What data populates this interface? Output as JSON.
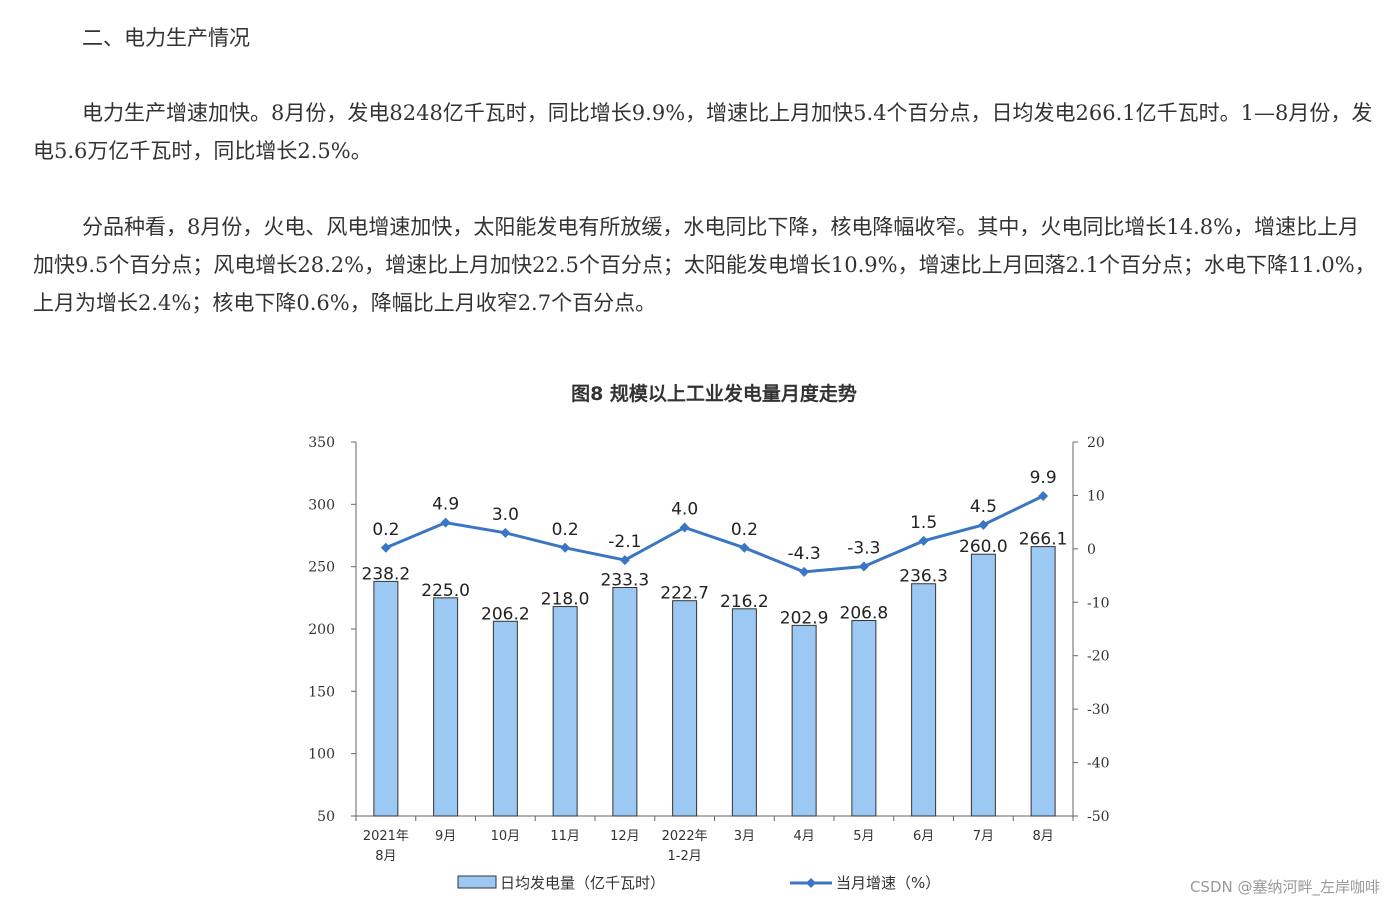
{
  "article": {
    "heading": "二、电力生产情况",
    "paragraph_1": "电力生产增速加快。8月份，发电8248亿千瓦时，同比增长9.9%，增速比上月加快5.4个百分点，日均发电266.1亿千瓦时。1—8月份，发电5.6万亿千瓦时，同比增长2.5%。",
    "paragraph_2": "分品种看，8月份，火电、风电增速加快，太阳能发电有所放缓，水电同比下降，核电降幅收窄。其中，火电同比增长14.8%，增速比上月加快9.5个百分点；风电增长28.2%，增速比上月加快22.5个百分点；太阳能发电增长10.9%，增速比上月回落2.1个百分点；水电下降11.0%，上月为增长2.4%；核电下降0.6%，降幅比上月收窄2.7个百分点。"
  },
  "chart_data": {
    "type": "bar",
    "title": "图8 规模以上工业发电量月度走势",
    "categories": [
      [
        "2021年",
        "8月"
      ],
      [
        "9月"
      ],
      [
        "10月"
      ],
      [
        "11月"
      ],
      [
        "12月"
      ],
      [
        "2022年",
        "1-2月"
      ],
      [
        "3月"
      ],
      [
        "4月"
      ],
      [
        "5月"
      ],
      [
        "6月"
      ],
      [
        "7月"
      ],
      [
        "8月"
      ]
    ],
    "series": [
      {
        "name": "日均发电量（亿千瓦时）",
        "kind": "bar",
        "axis": "left",
        "values": [
          238.2,
          225.0,
          206.2,
          218.0,
          233.3,
          222.7,
          216.2,
          202.9,
          206.8,
          236.3,
          260.0,
          266.1
        ],
        "labels": [
          "238.2",
          "225.0",
          "206.2",
          "218.0",
          "233.3",
          "222.7",
          "216.2",
          "202.9",
          "206.8",
          "236.3",
          "260.0",
          "266.1"
        ],
        "color": "#9cc9f3",
        "stroke": "#333333"
      },
      {
        "name": "当月增速（%）",
        "kind": "line",
        "axis": "right",
        "values": [
          0.2,
          4.9,
          3.0,
          0.2,
          -2.1,
          4.0,
          0.2,
          -4.3,
          -3.3,
          1.5,
          4.5,
          9.9
        ],
        "labels": [
          "0.2",
          "4.9",
          "3.0",
          "0.2",
          "-2.1",
          "4.0",
          "0.2",
          "-4.3",
          "-3.3",
          "1.5",
          "4.5",
          "9.9"
        ],
        "color": "#3a76c4"
      }
    ],
    "y_left": {
      "min": 50,
      "max": 350,
      "ticks": [
        "50",
        "100",
        "150",
        "200",
        "250",
        "300",
        "350"
      ]
    },
    "y_right": {
      "min": -50,
      "max": 20,
      "ticks": [
        "-50",
        "-40",
        "-30",
        "-20",
        "-10",
        "0",
        "10",
        "20"
      ]
    },
    "legend_position": "bottom",
    "grid": false
  },
  "watermark": "CSDN @塞纳河畔_左岸咖啡"
}
